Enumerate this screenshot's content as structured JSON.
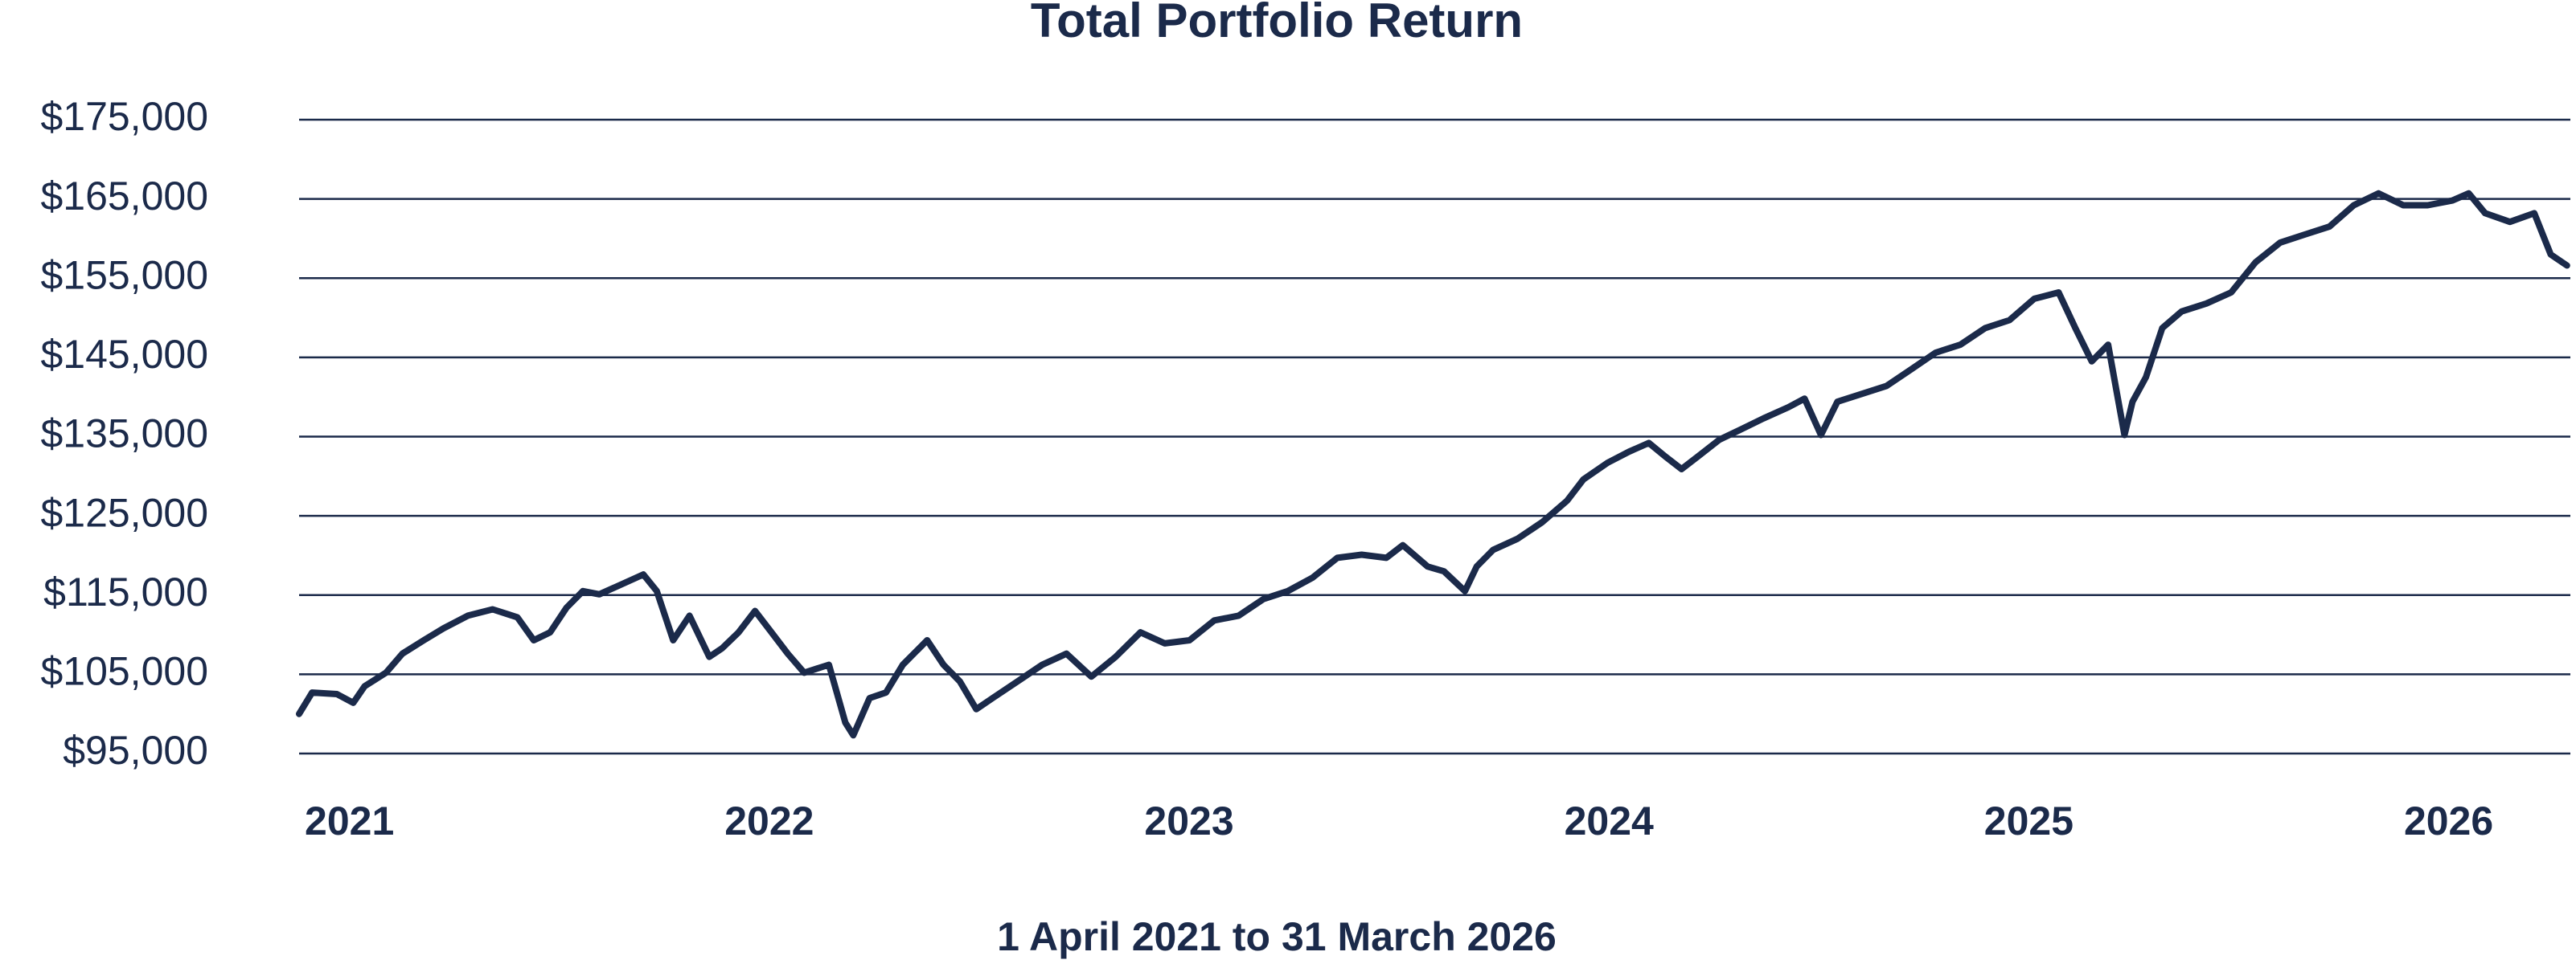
{
  "chart_data": {
    "type": "line",
    "title": "Total Portfolio Return",
    "xlabel": "1 April 2021 to 31 March 2026",
    "x": [
      2020.88,
      2020.911,
      2020.97,
      2021.009,
      2021.036,
      2021.087,
      2021.126,
      2021.177,
      2021.224,
      2021.282,
      2021.341,
      2021.4,
      2021.439,
      2021.478,
      2021.517,
      2021.556,
      2021.595,
      2021.646,
      2021.7,
      2021.732,
      2021.771,
      2021.81,
      2021.857,
      2021.888,
      2021.927,
      2021.966,
      2022.005,
      2022.044,
      2022.083,
      2022.142,
      2022.181,
      2022.2,
      2022.239,
      2022.278,
      2022.318,
      2022.376,
      2022.415,
      2022.454,
      2022.493,
      2022.532,
      2022.591,
      2022.65,
      2022.708,
      2022.767,
      2022.825,
      2022.884,
      2022.942,
      2023.001,
      2023.06,
      2023.118,
      2023.177,
      2023.235,
      2023.294,
      2023.353,
      2023.411,
      2023.47,
      2023.509,
      2023.568,
      2023.607,
      2023.657,
      2023.685,
      2023.724,
      2023.782,
      2023.841,
      2023.9,
      2023.939,
      2023.997,
      2024.048,
      2024.095,
      2024.134,
      2024.173,
      2024.212,
      2024.263,
      2024.31,
      2024.368,
      2024.427,
      2024.466,
      2024.505,
      2024.544,
      2024.603,
      2024.661,
      2024.72,
      2024.778,
      2024.837,
      2024.896,
      2024.954,
      2025.013,
      2025.071,
      2025.111,
      2025.15,
      2025.189,
      2025.228,
      2025.247,
      2025.279,
      2025.318,
      2025.364,
      2025.423,
      2025.482,
      2025.54,
      2025.599,
      2025.657,
      2025.716,
      2025.774,
      2025.833,
      2025.892,
      2025.95,
      2026.009,
      2026.048,
      2026.087,
      2026.146,
      2026.204,
      2026.243,
      2026.282
    ],
    "series": [
      {
        "name": "Total Portfolio Return",
        "color": "#1b2a4a",
        "values": [
          100000,
          102700,
          102500,
          101400,
          103500,
          105200,
          107600,
          109300,
          110800,
          112400,
          113200,
          112200,
          109300,
          110300,
          113400,
          115500,
          115100,
          116300,
          117600,
          115500,
          109300,
          112400,
          107200,
          108300,
          110300,
          113000,
          110300,
          107600,
          105200,
          106200,
          98900,
          97300,
          102000,
          102700,
          106200,
          109300,
          106200,
          104100,
          100600,
          102000,
          104100,
          106200,
          107600,
          104700,
          107200,
          110300,
          108900,
          109300,
          111800,
          112400,
          114500,
          115500,
          117200,
          119700,
          120100,
          119700,
          121300,
          118600,
          118000,
          115500,
          118600,
          120700,
          122100,
          124200,
          126900,
          129600,
          131700,
          133100,
          134200,
          132500,
          130900,
          132500,
          134600,
          135800,
          137300,
          138700,
          139800,
          135200,
          139400,
          140400,
          141400,
          143500,
          145600,
          146600,
          148700,
          149700,
          152400,
          153200,
          148700,
          144500,
          146600,
          135200,
          139400,
          142500,
          148700,
          150800,
          151800,
          153200,
          157000,
          159500,
          160500,
          161500,
          164200,
          165700,
          164200,
          164200,
          164800,
          165700,
          163200,
          162100,
          163200,
          158000,
          156600
        ]
      }
    ],
    "xlim": [
      2020.88,
      2026.29
    ],
    "xticks": [
      2021,
      2022,
      2023,
      2024,
      2025,
      2026
    ],
    "ylim": [
      95000,
      175000
    ],
    "yticks": [
      {
        "value": 95000,
        "label": "$95,000"
      },
      {
        "value": 105000,
        "label": "$105,000"
      },
      {
        "value": 115000,
        "label": "$115,000"
      },
      {
        "value": 125000,
        "label": "$125,000"
      },
      {
        "value": 135000,
        "label": "$135,000"
      },
      {
        "value": 145000,
        "label": "$145,000"
      },
      {
        "value": 155000,
        "label": "$155,000"
      },
      {
        "value": 165000,
        "label": "$165,000"
      },
      {
        "value": 175000,
        "label": "$175,000"
      }
    ],
    "grid": true
  }
}
